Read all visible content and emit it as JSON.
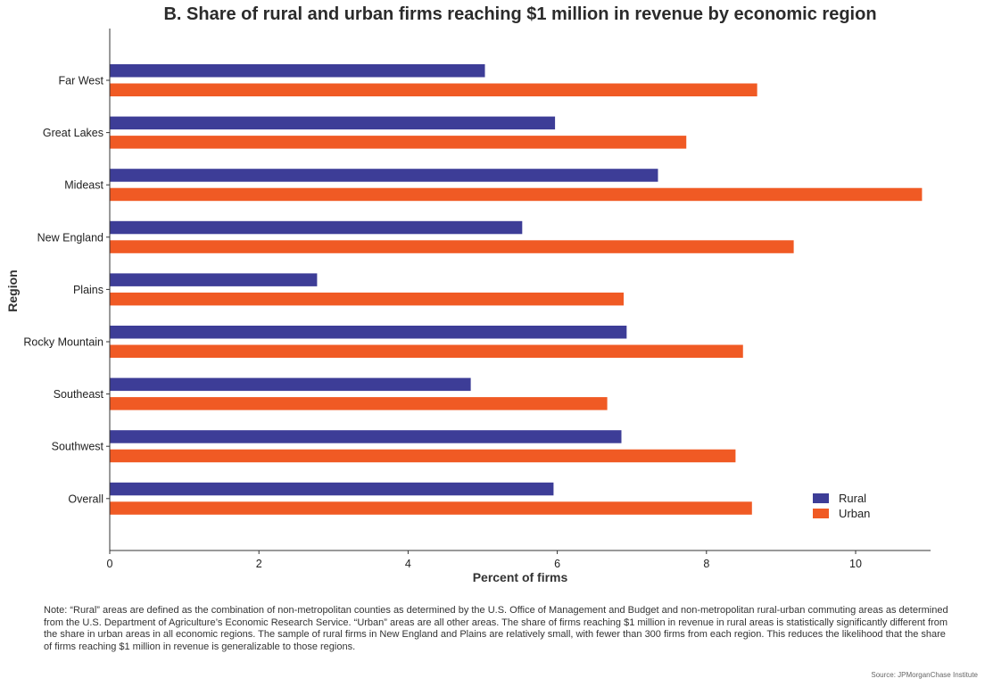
{
  "colors": {
    "rural": "#3d3d97",
    "urban": "#f05a24",
    "axis": "#333333"
  },
  "chart_data": {
    "type": "bar",
    "orientation": "horizontal",
    "title": "B. Share of rural and urban firms reaching $1 million in revenue by economic region",
    "xlabel": "Percent of firms",
    "ylabel": "Region",
    "categories": [
      "Far West",
      "Great Lakes",
      "Mideast",
      "New England",
      "Plains",
      "Rocky Mountain",
      "Southeast",
      "Southwest",
      "Overall"
    ],
    "series": [
      {
        "name": "Rural",
        "values": [
          5.03,
          5.97,
          7.35,
          5.53,
          2.78,
          6.93,
          4.84,
          6.86,
          5.95
        ]
      },
      {
        "name": "Urban",
        "values": [
          8.68,
          7.73,
          10.89,
          9.17,
          6.89,
          8.49,
          6.67,
          8.39,
          8.61
        ]
      }
    ],
    "xlim": [
      0,
      11
    ],
    "xticks": [
      "0",
      "2",
      "4",
      "6",
      "8",
      "10"
    ],
    "legend_position": "bottom-right",
    "grid": false
  },
  "note": "Note: “Rural” areas are defined as the combination of non-metropolitan counties as determined by the U.S. Office of Management and Budget and non-metropolitan rural-urban commuting areas as determined from the U.S. Department of Agriculture’s Economic Research Service. “Urban” areas are all other areas. The share of firms reaching $1 million in revenue in rural areas is statistically significantly different from the share in urban areas in all economic regions. The sample of rural firms in New England and Plains are relatively small, with fewer than 300 firms from each region. This reduces the likelihood that the share of firms reaching $1 million in revenue is generalizable to those regions.",
  "source": "Source: JPMorganChase Institute"
}
